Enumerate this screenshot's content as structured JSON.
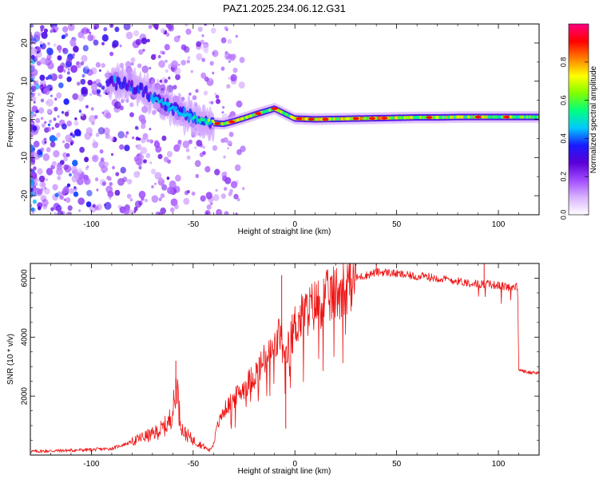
{
  "title": "PAZ1.2025.234.06.12.G31",
  "chart_data": [
    {
      "type": "heatmap",
      "title": "PAZ1.2025.234.06.12.G31",
      "xlabel": "Height of straight line (km)",
      "ylabel": "Frequency (Hz)",
      "xlim": [
        -130,
        120
      ],
      "ylim": [
        -25,
        25
      ],
      "x_ticks": [
        -100,
        -50,
        0,
        50,
        100
      ],
      "y_ticks": [
        -20,
        -10,
        0,
        10,
        20
      ],
      "colorbar": {
        "label": "Normalized spectral amplitude",
        "range": [
          0.0,
          1.0
        ],
        "ticks": [
          0.0,
          0.2,
          0.4,
          0.6,
          0.8
        ],
        "tick_labels": [
          "0.0",
          "0.2",
          "0.4",
          "0.6",
          "0.8"
        ],
        "colors": [
          "#ffffff",
          "#d9b3ff",
          "#a14bff",
          "#5a00d6",
          "#1a1aff",
          "#00c8ff",
          "#00ff80",
          "#80ff00",
          "#ffff00",
          "#ff8000",
          "#ff0000",
          "#ff0080"
        ]
      },
      "ridge": {
        "height_km": [
          -85,
          -75,
          -65,
          -55,
          -45,
          -40,
          -35,
          -30,
          -25,
          -20,
          -15,
          -10,
          -5,
          0,
          10,
          20,
          30,
          40,
          50,
          60,
          70,
          80,
          90,
          100,
          110,
          120
        ],
        "frequency_hz": [
          9.5,
          7.5,
          4.5,
          1.5,
          -0.5,
          -1.0,
          -1.2,
          -0.5,
          0.3,
          1.2,
          2.0,
          2.8,
          1.5,
          0.2,
          0.0,
          0.1,
          0.2,
          0.3,
          0.4,
          0.5,
          0.5,
          0.6,
          0.6,
          0.6,
          0.6,
          0.6
        ],
        "peak_amplitude": [
          0.45,
          0.5,
          0.55,
          0.6,
          0.7,
          0.8,
          0.85,
          0.9,
          0.85,
          0.9,
          0.9,
          0.85,
          0.8,
          0.95,
          0.95,
          0.9,
          0.95,
          0.95,
          0.9,
          0.85,
          0.9,
          0.85,
          0.9,
          0.85,
          0.85,
          0.7
        ]
      }
    },
    {
      "type": "line",
      "xlabel": "Height of straight line (km)",
      "ylabel": "SNR (10 * v/v)",
      "xlim": [
        -130,
        120
      ],
      "ylim": [
        0,
        6500
      ],
      "x_ticks": [
        -100,
        -50,
        0,
        50,
        100
      ],
      "y_ticks": [
        2000,
        4000,
        6000
      ],
      "series": [
        {
          "name": "SNR",
          "color": "#ee1111",
          "x": [
            -130,
            -120,
            -110,
            -100,
            -90,
            -80,
            -75,
            -70,
            -65,
            -62,
            -59,
            -58,
            -57,
            -55,
            -50,
            -45,
            -42,
            -40,
            -38,
            -35,
            -30,
            -25,
            -20,
            -15,
            -10,
            -7,
            -5,
            -3,
            0,
            5,
            10,
            15,
            20,
            25,
            30,
            35,
            40,
            45,
            50,
            55,
            60,
            65,
            70,
            75,
            80,
            85,
            90,
            95,
            100,
            105,
            109.5,
            110,
            112,
            115,
            120
          ],
          "y": [
            120,
            140,
            160,
            180,
            220,
            450,
            600,
            700,
            900,
            1100,
            1800,
            2700,
            1500,
            800,
            500,
            300,
            150,
            400,
            1000,
            1500,
            1900,
            2300,
            2700,
            3200,
            3600,
            4200,
            3000,
            3700,
            4400,
            4800,
            5100,
            5300,
            5500,
            5800,
            6000,
            6100,
            6200,
            6200,
            6150,
            6100,
            6050,
            6050,
            6000,
            5950,
            5900,
            5850,
            5800,
            5800,
            5750,
            5700,
            5700,
            2900,
            2850,
            2800,
            2800
          ],
          "spikes": [
            {
              "x": -58.5,
              "y": 3200
            },
            {
              "x": -6.5,
              "y": 6100
            },
            {
              "x": -4.5,
              "y": 900
            },
            {
              "x": 40,
              "y": 6500
            },
            {
              "x": 93,
              "y": 6500
            }
          ]
        }
      ]
    }
  ]
}
